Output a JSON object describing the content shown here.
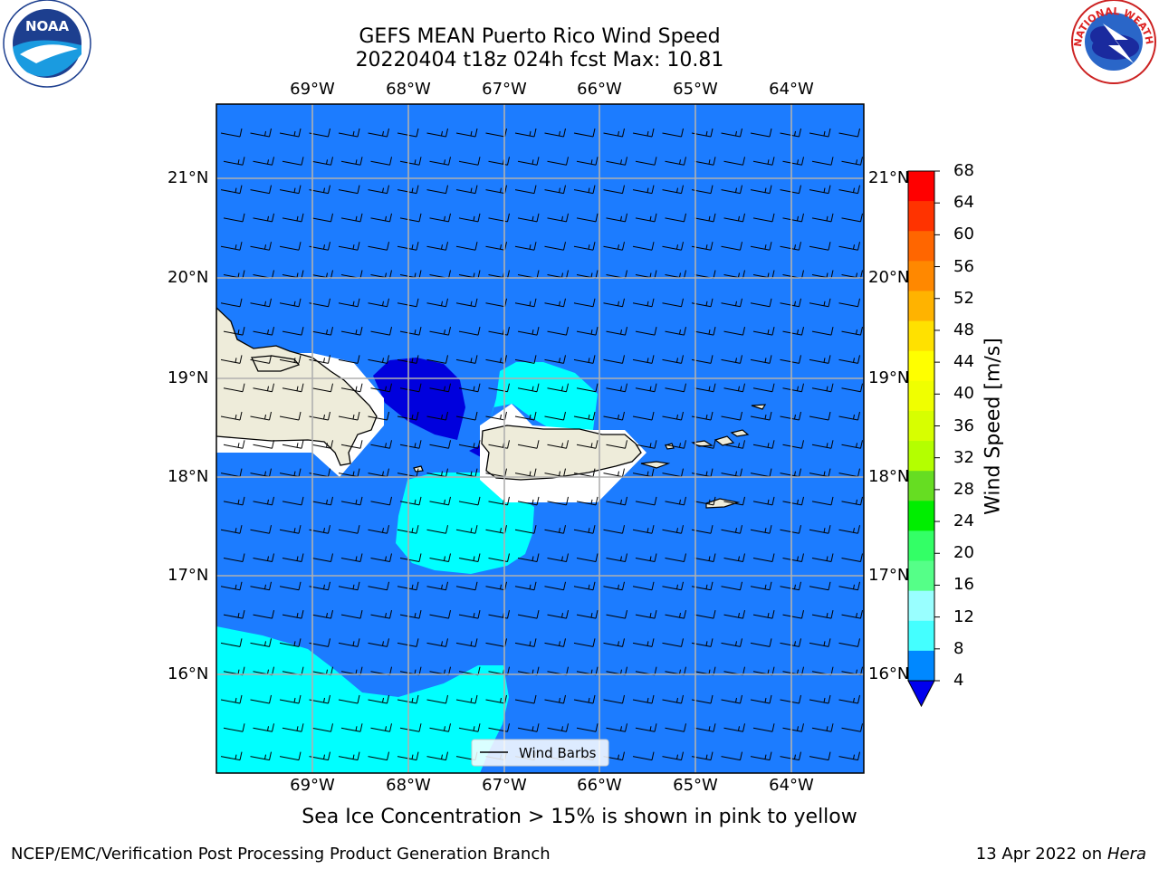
{
  "title_line1": "GEFS MEAN Puerto Rico Wind Speed",
  "title_line2": "20220404 t18z 024h fcst   Max: 10.81",
  "lon_labels": [
    "69°W",
    "68°W",
    "67°W",
    "66°W",
    "65°W",
    "64°W"
  ],
  "lat_labels": [
    "21°N",
    "20°N",
    "19°N",
    "18°N",
    "17°N",
    "16°N"
  ],
  "colorbar": {
    "label": "Wind Speed [m/s]",
    "ticks": [
      "68",
      "64",
      "60",
      "56",
      "52",
      "48",
      "44",
      "40",
      "36",
      "32",
      "28",
      "24",
      "20",
      "16",
      "12",
      "8",
      "4"
    ],
    "colors": [
      "#ff0000",
      "#ff3300",
      "#ff6600",
      "#ff8800",
      "#ffb300",
      "#ffe100",
      "#ffff00",
      "#f0ff00",
      "#d7ff00",
      "#b4ff00",
      "#66dd22",
      "#00ee00",
      "#33ff66",
      "#55ff88",
      "#99ffff",
      "#44ffff",
      "#00ffff",
      "#0088ff"
    ],
    "extend_min_color": "#0000ee"
  },
  "legend": {
    "label": "Wind Barbs"
  },
  "note": "Sea Ice Concentration > 15% is shown in pink to yellow",
  "footer_left": "NCEP/EMC/Verification Post Processing Product Generation Branch",
  "footer_date": "13 Apr 2022 on ",
  "footer_host": "Hera",
  "logos": {
    "noaa": "NOAA",
    "nws": "NATIONAL WEATHER SERVICE"
  },
  "colors": {
    "ocean": "#1c7cff",
    "wind_8_12": "#00ffff",
    "wind_below_4": "#0000dd",
    "land": "#eeecda"
  }
}
